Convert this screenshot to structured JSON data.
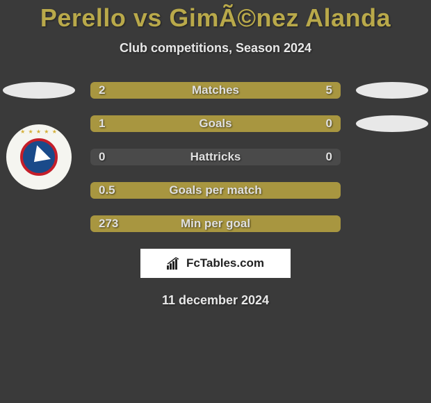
{
  "title": "Perello vs GimÃ©nez Alanda",
  "subtitle": "Club competitions, Season 2024",
  "footer_brand": "FcTables.com",
  "footer_date": "11 december 2024",
  "colors": {
    "background": "#3a3a3a",
    "title": "#b9a94a",
    "text": "#e8e8e8",
    "bar_fill": "#a89640",
    "bar_empty": "#4a4a4a",
    "badge": "#e8e8e8",
    "footer_bg": "#ffffff"
  },
  "stats": [
    {
      "label": "Matches",
      "left_value": "2",
      "right_value": "5",
      "left_pct": 28.6,
      "right_pct": 71.4,
      "left_badge": true,
      "right_badge": true,
      "left_logo": false
    },
    {
      "label": "Goals",
      "left_value": "1",
      "right_value": "0",
      "left_pct": 100,
      "right_pct": 18,
      "left_badge": false,
      "right_badge": true,
      "left_logo": false
    },
    {
      "label": "Hattricks",
      "left_value": "0",
      "right_value": "0",
      "left_pct": 0,
      "right_pct": 0,
      "left_badge": false,
      "right_badge": false,
      "left_logo": true
    },
    {
      "label": "Goals per match",
      "left_value": "0.5",
      "right_value": "",
      "left_pct": 100,
      "right_pct": 0,
      "left_badge": false,
      "right_badge": false,
      "left_logo": false
    },
    {
      "label": "Min per goal",
      "left_value": "273",
      "right_value": "",
      "left_pct": 100,
      "right_pct": 0,
      "left_badge": false,
      "right_badge": false,
      "left_logo": false
    }
  ]
}
